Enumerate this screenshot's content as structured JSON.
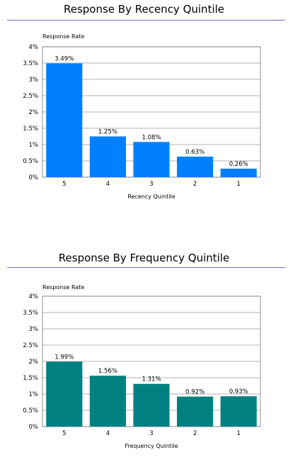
{
  "chart_data": [
    {
      "type": "bar",
      "title": "Response By Recency Quintile",
      "ylabel": "Response Rate",
      "xlabel": "Recency Quintile",
      "categories": [
        "5",
        "4",
        "3",
        "2",
        "1"
      ],
      "values": [
        3.49,
        1.25,
        1.08,
        0.63,
        0.26
      ],
      "data_labels": [
        "3.49%",
        "1.25%",
        "1.08%",
        "0.63%",
        "0.26%"
      ],
      "ylim": [
        0,
        4
      ],
      "yticks": [
        0,
        0.5,
        1,
        1.5,
        2,
        2.5,
        3,
        3.5,
        4
      ],
      "ytick_labels": [
        "0%",
        "0.5%",
        "1%",
        "1.5%",
        "2%",
        "2.5%",
        "3%",
        "3.5%",
        "4%"
      ],
      "grid": true,
      "color": "#0080ff"
    },
    {
      "type": "bar",
      "title": "Response By Frequency Quintile",
      "ylabel": "Response Rate",
      "xlabel": "Frequency Quintile",
      "categories": [
        "5",
        "4",
        "3",
        "2",
        "1"
      ],
      "values": [
        1.99,
        1.56,
        1.31,
        0.92,
        0.93
      ],
      "data_labels": [
        "1.99%",
        "1.56%",
        "1.31%",
        "0.92%",
        "0.93%"
      ],
      "ylim": [
        0,
        4
      ],
      "yticks": [
        0,
        0.5,
        1,
        1.5,
        2,
        2.5,
        3,
        3.5,
        4
      ],
      "ytick_labels": [
        "0%",
        "0.5%",
        "1%",
        "1.5%",
        "2%",
        "2.5%",
        "3%",
        "3.5%",
        "4%"
      ],
      "grid": true,
      "color": "#008080"
    }
  ]
}
